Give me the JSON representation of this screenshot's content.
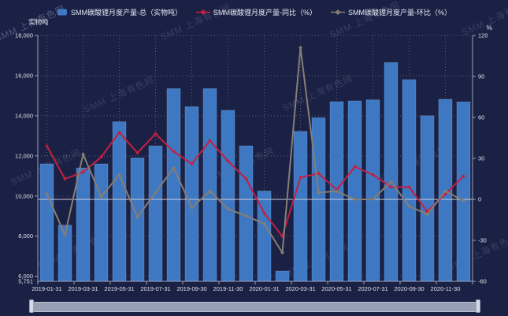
{
  "watermark": {
    "text": "SMM 上海有色网"
  },
  "legend": {
    "total": "SMM碳酸锂月度产量-总（实物吨）",
    "yoy": "SMM碳酸锂月度产量-同比（%）",
    "mom": "SMM碳酸锂月度产量-环比（%）"
  },
  "axes": {
    "left_unit": "实物吨",
    "right_unit": "%",
    "left_ticks": [
      {
        "label": "18,000",
        "value": 18000
      },
      {
        "label": "16,000",
        "value": 16000
      },
      {
        "label": "14,000",
        "value": 14000
      },
      {
        "label": "12,000",
        "value": 12000
      },
      {
        "label": "10,000",
        "value": 10000
      },
      {
        "label": "8,000",
        "value": 8000
      },
      {
        "label": "6,000",
        "value": 6000
      }
    ],
    "left_min": {
      "label": "5,751",
      "value": 5751
    },
    "right_ticks": [
      {
        "label": "120",
        "value": 120
      },
      {
        "label": "90",
        "value": 90
      },
      {
        "label": "60",
        "value": 60
      },
      {
        "label": "30",
        "value": 30
      },
      {
        "label": "0",
        "value": 0
      },
      {
        "label": "-30",
        "value": -30
      },
      {
        "label": "-60",
        "value": -60
      }
    ]
  },
  "chart_data": {
    "type": "bar+line",
    "x": [
      "2019-01-31",
      "2019-02-28",
      "2019-03-31",
      "2019-04-30",
      "2019-05-31",
      "2019-06-30",
      "2019-07-31",
      "2019-08-31",
      "2019-09-30",
      "2019-10-31",
      "2019-11-30",
      "2019-12-31",
      "2020-01-31",
      "2020-02-29",
      "2020-03-31",
      "2020-04-30",
      "2020-05-31",
      "2020-06-30",
      "2020-07-31",
      "2020-08-31",
      "2020-09-30",
      "2020-10-31",
      "2020-11-30",
      "2020-12-31"
    ],
    "x_label_every": 2,
    "series": [
      {
        "name": "SMM碳酸锂月度产量-总（实物吨）",
        "type": "bar",
        "axis": "left",
        "values": [
          11600,
          8550,
          11400,
          11600,
          13700,
          11900,
          12500,
          15350,
          14450,
          15350,
          14270,
          12500,
          10250,
          6260,
          13220,
          13900,
          14700,
          14740,
          14790,
          16650,
          15800,
          14000,
          14820,
          14690
        ]
      },
      {
        "name": "SMM碳酸锂月度产量-同比（%）",
        "type": "line",
        "axis": "right",
        "values": [
          39,
          15,
          20,
          31,
          49,
          34,
          48,
          35,
          26,
          43,
          28,
          15,
          -10,
          -27,
          16,
          19,
          7,
          24,
          18,
          9,
          9,
          -9,
          4,
          17
        ]
      },
      {
        "name": "SMM碳酸锂月度产量-环比（%）",
        "type": "line",
        "axis": "right",
        "values": [
          4,
          -26,
          33,
          2,
          18,
          -13,
          5,
          23,
          -6,
          6,
          -7,
          -12,
          -18,
          -39,
          111,
          5,
          6,
          0,
          0,
          13,
          -5,
          -11,
          6,
          -1
        ]
      }
    ],
    "left_axis": {
      "min": 5751,
      "max": 18000
    },
    "right_axis": {
      "min": -60,
      "max": 120
    },
    "grid": true,
    "legend_position": "top-center",
    "colors": {
      "background": "#1b2144",
      "bar": "#3e78c2",
      "bar_edge": "rgba(140,190,245,0.45)",
      "yoy_line": "#c51f41",
      "mom_line": "#867e74",
      "axis": "#9aa3b8",
      "label": "#dde1ec",
      "grid_dots": "rgba(255,255,255,0.28)",
      "zero_line": "#c9cdd8"
    }
  }
}
